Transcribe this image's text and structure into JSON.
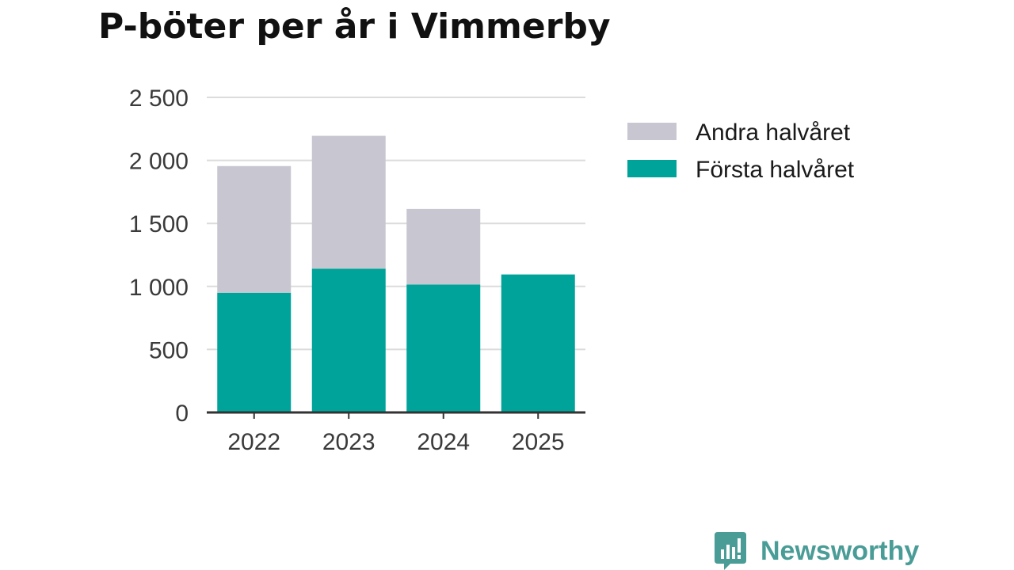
{
  "chart_data": {
    "type": "bar",
    "stacked": true,
    "title": "P-böter per år i Vimmerby",
    "categories": [
      "2022",
      "2023",
      "2024",
      "2025"
    ],
    "series": [
      {
        "name": "Första halvåret",
        "color": "#00a39a",
        "values": [
          950,
          1140,
          1015,
          1095
        ]
      },
      {
        "name": "Andra halvåret",
        "color": "#c8c7d1",
        "values": [
          1005,
          1055,
          600,
          0
        ]
      }
    ],
    "ylim": [
      0,
      2500
    ],
    "yticks": [
      0,
      500,
      1000,
      1500,
      2000,
      2500
    ],
    "ytick_labels": [
      "0",
      "500",
      "1 000",
      "1 500",
      "2 000",
      "2 500"
    ],
    "legend_order": [
      "Andra halvåret",
      "Första halvåret"
    ],
    "legend_position": "right",
    "grid": true,
    "xlabel": "",
    "ylabel": ""
  },
  "logo": {
    "text": "Newsworthy",
    "color": "#4a9c96"
  }
}
